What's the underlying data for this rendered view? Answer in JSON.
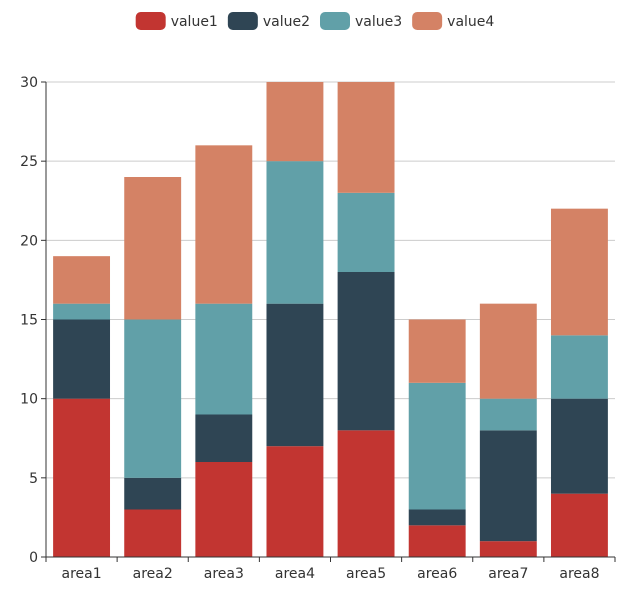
{
  "chart_data": {
    "type": "bar",
    "stacked": true,
    "categories": [
      "area1",
      "area2",
      "area3",
      "area4",
      "area5",
      "area6",
      "area7",
      "area8"
    ],
    "series": [
      {
        "name": "value1",
        "color": "#c23531",
        "values": [
          10,
          3,
          6,
          7,
          8,
          2,
          1,
          4
        ]
      },
      {
        "name": "value2",
        "color": "#2f4554",
        "values": [
          5,
          2,
          3,
          9,
          10,
          1,
          7,
          6
        ]
      },
      {
        "name": "value3",
        "color": "#61a0a8",
        "values": [
          1,
          10,
          7,
          9,
          5,
          8,
          2,
          4
        ]
      },
      {
        "name": "value4",
        "color": "#d48265",
        "values": [
          3,
          9,
          10,
          5,
          7,
          4,
          6,
          8
        ]
      }
    ],
    "title": "",
    "xlabel": "",
    "ylabel": "",
    "ylim": [
      0,
      30
    ],
    "yticks": [
      0,
      5,
      10,
      15,
      20,
      25,
      30
    ],
    "grid": true,
    "legend": "top-center"
  }
}
